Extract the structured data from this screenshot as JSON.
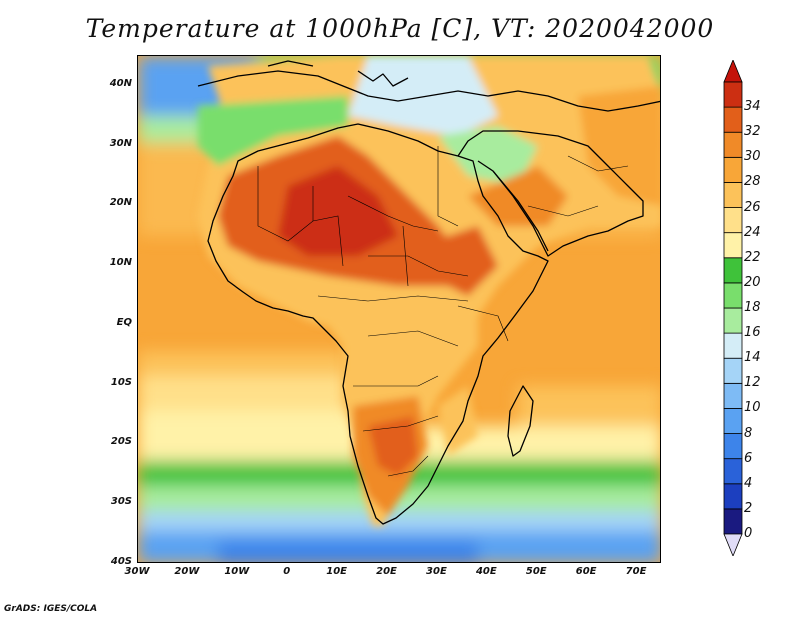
{
  "title": "Temperature at 1000hPa [C], VT: 2020042000",
  "footer": "GrADS: IGES/COLA",
  "map": {
    "lat_labels": [
      "40N",
      "30N",
      "20N",
      "10N",
      "EQ",
      "10S",
      "20S",
      "30S",
      "40S"
    ],
    "lon_labels": [
      "30W",
      "20W",
      "10W",
      "0",
      "10E",
      "20E",
      "30E",
      "40E",
      "50E",
      "60E",
      "70E"
    ],
    "lon_range": [
      -30,
      75
    ],
    "lat_range": [
      -40,
      45
    ]
  },
  "colorbar": {
    "levels": [
      "0",
      "2",
      "4",
      "6",
      "8",
      "10",
      "12",
      "14",
      "16",
      "18",
      "20",
      "22",
      "24",
      "26",
      "28",
      "30",
      "32",
      "34"
    ],
    "colors": [
      "#1a1a80",
      "#1c3fbf",
      "#2a62d9",
      "#3d84ea",
      "#5aa2f2",
      "#7ebbf5",
      "#a5d4f7",
      "#d4edf7",
      "#a8ec9e",
      "#79de6c",
      "#3fc23a",
      "#fff2a8",
      "#ffe08a",
      "#fcc25a",
      "#f8a638",
      "#f08a28",
      "#e25f1a",
      "#cc2f12"
    ],
    "below_color": "#e0dcf7",
    "above_color": "#c4130a"
  }
}
